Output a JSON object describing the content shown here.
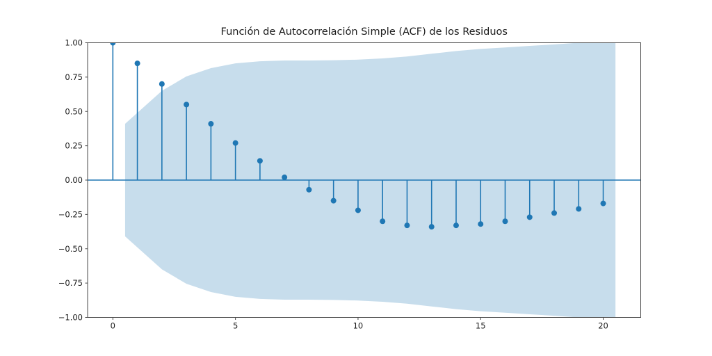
{
  "chart_data": {
    "type": "scatter",
    "variant": "stem-acf",
    "title": "Función de Autocorrelación Simple (ACF) de los Residuos",
    "xlabel": "",
    "ylabel": "",
    "x": [
      0,
      1,
      2,
      3,
      4,
      5,
      6,
      7,
      8,
      9,
      10,
      11,
      12,
      13,
      14,
      15,
      16,
      17,
      18,
      19,
      20
    ],
    "y": [
      1.0,
      0.85,
      0.7,
      0.55,
      0.41,
      0.27,
      0.14,
      0.02,
      -0.07,
      -0.15,
      -0.22,
      -0.3,
      -0.33,
      -0.34,
      -0.33,
      -0.32,
      -0.3,
      -0.27,
      -0.24,
      -0.21,
      -0.17
    ],
    "confidence_band": {
      "symmetric_about_zero": true,
      "x": [
        0.5,
        2,
        3,
        4,
        5,
        6,
        7,
        8,
        9,
        10,
        11,
        12,
        13,
        14,
        15,
        16,
        17,
        18,
        19,
        20.5
      ],
      "upper": [
        0.41,
        0.65,
        0.755,
        0.815,
        0.85,
        0.865,
        0.871,
        0.871,
        0.873,
        0.877,
        0.886,
        0.9,
        0.92,
        0.94,
        0.955,
        0.966,
        0.977,
        0.988,
        1.0,
        1.01
      ]
    },
    "zero_line": 0,
    "xlim": [
      -1.03,
      21.53
    ],
    "ylim": [
      -1.0,
      1.0
    ],
    "x_ticks": {
      "values": [
        0,
        5,
        10,
        15,
        20
      ],
      "labels": [
        "0",
        "5",
        "10",
        "15",
        "20"
      ]
    },
    "y_ticks": {
      "values": [
        1.0,
        0.75,
        0.5,
        0.25,
        0.0,
        -0.25,
        -0.5,
        -0.75,
        -1.0
      ],
      "labels": [
        "1.00",
        "0.75",
        "0.50",
        "0.25",
        "0.00",
        "−0.25",
        "−0.50",
        "−0.75",
        "−1.00"
      ]
    },
    "legend": null,
    "grid": false,
    "colors": {
      "stem_line": "#1f77b4",
      "marker": "#1f77b4",
      "zero_line": "#1f77b4",
      "confidence_band": "#c7ddec",
      "spine": "#4a4a4a",
      "text": "#1a1a1a",
      "background": "#ffffff"
    }
  }
}
